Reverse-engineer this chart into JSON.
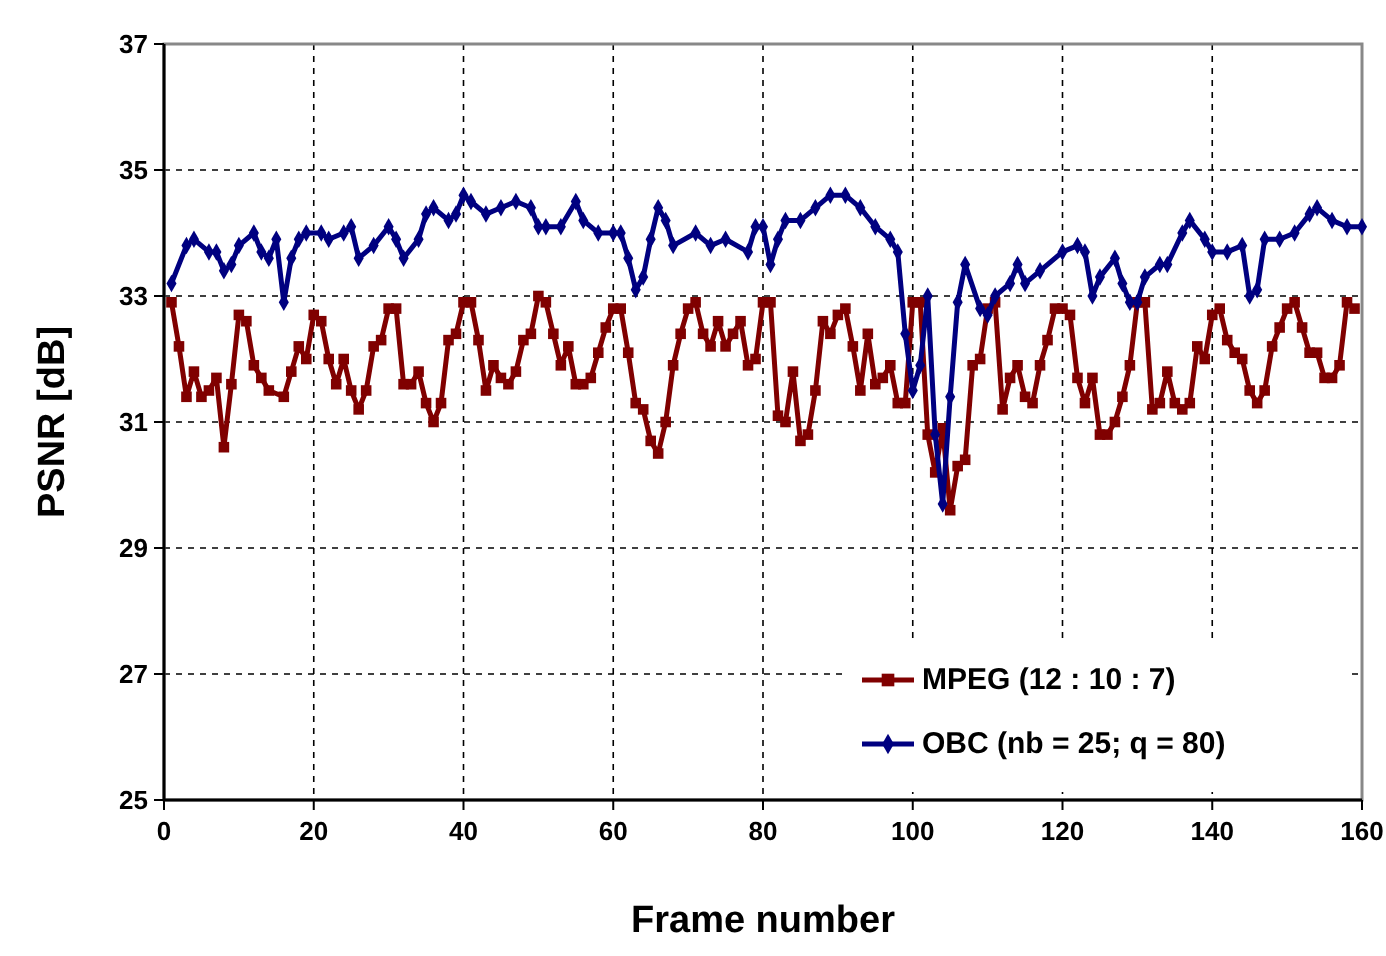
{
  "chart_data": {
    "type": "line",
    "xlabel": "Frame number",
    "ylabel": "PSNR [dB]",
    "xlim": [
      0,
      160
    ],
    "xticks": [
      0,
      20,
      40,
      60,
      80,
      100,
      120,
      140,
      160
    ],
    "ylim": [
      25,
      37
    ],
    "yticks": [
      25,
      27,
      29,
      31,
      33,
      35,
      37
    ],
    "grid": true,
    "legend": "bottom right",
    "line_style": "solid",
    "series": [
      {
        "name": "MPEG (12 : 10 : 7)",
        "color": "#800000",
        "marker": "square",
        "x": [
          1,
          2,
          3,
          4,
          5,
          6,
          7,
          8,
          9,
          10,
          11,
          12,
          13,
          14,
          16,
          17,
          18,
          19,
          20,
          21,
          22,
          23,
          24,
          25,
          26,
          27,
          28,
          29,
          30,
          31,
          32,
          33,
          34,
          35,
          36,
          37,
          38,
          39,
          40,
          41,
          42,
          43,
          44,
          45,
          46,
          47,
          48,
          49,
          50,
          51,
          52,
          53,
          54,
          55,
          56,
          57,
          58,
          59,
          60,
          61,
          62,
          63,
          64,
          65,
          66,
          67,
          68,
          69,
          70,
          71,
          72,
          73,
          74,
          75,
          76,
          77,
          78,
          79,
          80,
          81,
          82,
          83,
          84,
          85,
          86,
          87,
          88,
          89,
          90,
          91,
          92,
          93,
          94,
          95,
          96,
          97,
          98,
          99,
          100,
          101,
          102,
          103,
          104,
          105,
          106,
          107,
          108,
          109,
          110,
          111,
          112,
          113,
          114,
          115,
          116,
          117,
          118,
          119,
          120,
          121,
          122,
          123,
          124,
          125,
          126,
          127,
          128,
          129,
          130,
          131,
          132,
          133,
          134,
          135,
          136,
          137,
          138,
          139,
          140,
          141,
          142,
          143,
          144,
          145,
          146,
          147,
          148,
          149,
          150,
          151,
          152,
          153,
          154,
          155,
          156,
          157,
          158,
          159
        ],
        "values": [
          32.9,
          32.2,
          31.4,
          31.8,
          31.4,
          31.5,
          31.7,
          30.6,
          31.6,
          32.7,
          32.6,
          31.9,
          31.7,
          31.5,
          31.4,
          31.8,
          32.2,
          32.0,
          32.7,
          32.6,
          32.0,
          31.6,
          32.0,
          31.5,
          31.2,
          31.5,
          32.2,
          32.3,
          32.8,
          32.8,
          31.6,
          31.6,
          31.8,
          31.3,
          31.0,
          31.3,
          32.3,
          32.4,
          32.9,
          32.9,
          32.3,
          31.5,
          31.9,
          31.7,
          31.6,
          31.8,
          32.3,
          32.4,
          33.0,
          32.9,
          32.4,
          31.9,
          32.2,
          31.6,
          31.6,
          31.7,
          32.1,
          32.5,
          32.8,
          32.8,
          32.1,
          31.3,
          31.2,
          30.7,
          30.5,
          31.0,
          31.9,
          32.4,
          32.8,
          32.9,
          32.4,
          32.2,
          32.6,
          32.2,
          32.4,
          32.6,
          31.9,
          32.0,
          32.9,
          32.9,
          31.1,
          31.0,
          31.8,
          30.7,
          30.8,
          31.5,
          32.6,
          32.4,
          32.7,
          32.8,
          32.2,
          31.5,
          32.4,
          31.6,
          31.7,
          31.9,
          31.3,
          31.3,
          32.9,
          32.9,
          30.8,
          30.2,
          30.9,
          29.6,
          30.3,
          30.4,
          31.9,
          32.0,
          32.8,
          32.9,
          31.2,
          31.7,
          31.9,
          31.4,
          31.3,
          31.9,
          32.3,
          32.8,
          32.8,
          32.7,
          31.7,
          31.3,
          31.7,
          30.8,
          30.8,
          31.0,
          31.4,
          31.9,
          32.9,
          32.9,
          31.2,
          31.3,
          31.8,
          31.3,
          31.2,
          31.3,
          32.2,
          32.0,
          32.7,
          32.8,
          32.3,
          32.1,
          32.0,
          31.5,
          31.3,
          31.5,
          32.2,
          32.5,
          32.8,
          32.9,
          32.5,
          32.1,
          32.1,
          31.7,
          31.7,
          31.9,
          32.9,
          32.8
        ]
      },
      {
        "name": "OBC (nb = 25; q = 80)",
        "color": "#000080",
        "marker": "diamond",
        "x": [
          1,
          3,
          4,
          6,
          7,
          8,
          9,
          10,
          12,
          13,
          14,
          15,
          16,
          17,
          18,
          19,
          21,
          22,
          24,
          25,
          26,
          28,
          30,
          31,
          32,
          34,
          35,
          36,
          38,
          39,
          40,
          41,
          43,
          45,
          47,
          49,
          50,
          51,
          53,
          55,
          56,
          58,
          60,
          61,
          62,
          63,
          64,
          65,
          66,
          67,
          68,
          71,
          73,
          75,
          78,
          79,
          80,
          81,
          82,
          83,
          85,
          87,
          89,
          91,
          93,
          95,
          97,
          98,
          99,
          100,
          101,
          102,
          103,
          104,
          105,
          106,
          107,
          109,
          110,
          111,
          113,
          114,
          115,
          117,
          120,
          122,
          123,
          124,
          125,
          127,
          128,
          129,
          130,
          131,
          133,
          134,
          136,
          137,
          139,
          140,
          142,
          144,
          145,
          146,
          147,
          149,
          151,
          153,
          154,
          156,
          158,
          160
        ],
        "values": [
          33.2,
          33.8,
          33.9,
          33.7,
          33.7,
          33.4,
          33.5,
          33.8,
          34.0,
          33.7,
          33.6,
          33.9,
          32.9,
          33.6,
          33.9,
          34.0,
          34.0,
          33.9,
          34.0,
          34.1,
          33.6,
          33.8,
          34.1,
          33.9,
          33.6,
          33.9,
          34.3,
          34.4,
          34.2,
          34.3,
          34.6,
          34.5,
          34.3,
          34.4,
          34.5,
          34.4,
          34.1,
          34.1,
          34.1,
          34.5,
          34.2,
          34.0,
          34.0,
          34.0,
          33.6,
          33.1,
          33.3,
          33.9,
          34.4,
          34.2,
          33.8,
          34.0,
          33.8,
          33.9,
          33.7,
          34.1,
          34.1,
          33.5,
          33.9,
          34.2,
          34.2,
          34.4,
          34.6,
          34.6,
          34.4,
          34.1,
          33.9,
          33.7,
          32.4,
          31.5,
          31.9,
          33.0,
          30.8,
          29.7,
          31.4,
          32.9,
          33.5,
          32.8,
          32.7,
          33.0,
          33.2,
          33.5,
          33.2,
          33.4,
          33.7,
          33.8,
          33.7,
          33.0,
          33.3,
          33.6,
          33.2,
          32.9,
          32.9,
          33.3,
          33.5,
          33.5,
          34.0,
          34.2,
          33.9,
          33.7,
          33.7,
          33.8,
          33.0,
          33.1,
          33.9,
          33.9,
          34.0,
          34.3,
          34.4,
          34.2,
          34.1,
          34.1
        ]
      }
    ]
  }
}
